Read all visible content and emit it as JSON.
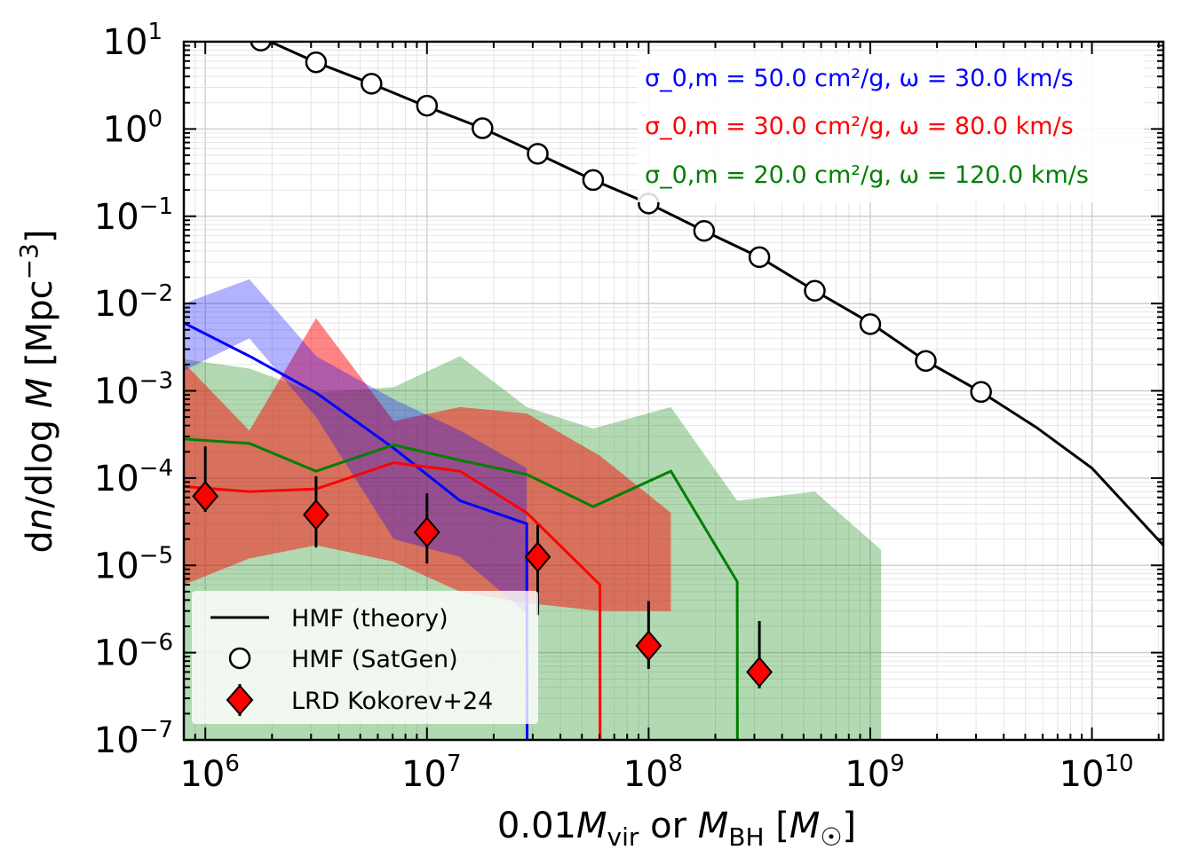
{
  "chart_data": {
    "type": "line",
    "xlabel": "0.01M_vir or M_BH [M_☉]",
    "ylabel": "dn/dlog M [Mpc⁻³]",
    "xscale": "log",
    "yscale": "log",
    "xlim": [
      800000,
      21000000000
    ],
    "ylim": [
      1e-07,
      10
    ],
    "grid": "major and minor, both axes",
    "legend_position": "lower-left",
    "x_tick_labels": [
      {
        "base": "10",
        "exp": "6"
      },
      {
        "base": "10",
        "exp": "7"
      },
      {
        "base": "10",
        "exp": "8"
      },
      {
        "base": "10",
        "exp": "9"
      },
      {
        "base": "10",
        "exp": "10"
      }
    ],
    "y_tick_labels": [
      {
        "base": "10",
        "exp": "1"
      },
      {
        "base": "10",
        "exp": "0"
      },
      {
        "base": "10",
        "exp": "−1"
      },
      {
        "base": "10",
        "exp": "−2"
      },
      {
        "base": "10",
        "exp": "−3"
      },
      {
        "base": "10",
        "exp": "−4"
      },
      {
        "base": "10",
        "exp": "−5"
      },
      {
        "base": "10",
        "exp": "−6"
      },
      {
        "base": "10",
        "exp": "−7"
      }
    ],
    "annotations": [
      {
        "text": "σ_0,m = 50.0 cm²/g, ω = 30.0 km/s",
        "color": "#0000ff"
      },
      {
        "text": "σ_0,m = 30.0 cm²/g, ω = 80.0 km/s",
        "color": "#ff0000"
      },
      {
        "text": "σ_0,m = 20.0 cm²/g, ω = 120.0 km/s",
        "color": "#008000"
      }
    ],
    "series": [
      {
        "name": "HMF (theory)",
        "kind": "line",
        "color": "#000000",
        "x": [
          1560000,
          3160000,
          5620000,
          10000000,
          17800000,
          31600000,
          56200000,
          100000000,
          178000000,
          316000000,
          562000000,
          1000000000,
          1780000000,
          3160000000,
          5620000000,
          10000000000,
          21000000000
        ],
        "y": [
          13,
          5.8,
          3.3,
          1.8,
          1.02,
          0.52,
          0.26,
          0.14,
          0.068,
          0.034,
          0.014,
          0.006,
          0.0022,
          0.00097,
          0.00038,
          0.00013,
          1.7e-05
        ]
      },
      {
        "name": "HMF (SatGen)",
        "kind": "markers",
        "marker": "open-circle",
        "color": "#000000",
        "x": [
          1780000,
          3160000,
          5620000,
          10000000,
          17800000,
          31600000,
          56200000,
          100000000,
          178000000,
          316000000,
          562000000,
          1000000000,
          1780000000,
          3160000000
        ],
        "y": [
          10.3,
          5.8,
          3.3,
          1.85,
          1.02,
          0.52,
          0.26,
          0.14,
          0.068,
          0.034,
          0.014,
          0.0058,
          0.0022,
          0.00097
        ]
      },
      {
        "name": "LRD Kokorev+24",
        "kind": "errorbar",
        "marker": "diamond",
        "color": "#ff0000",
        "x": [
          1000000,
          3160000,
          10000000,
          31600000,
          100000000,
          316000000
        ],
        "y": [
          6.2e-05,
          3.8e-05,
          2.4e-05,
          1.25e-05,
          1.2e-06,
          6e-07
        ],
        "y_lo": [
          4.1e-05,
          1.6e-05,
          1.05e-05,
          2.7e-06,
          6.5e-07,
          3.9e-07
        ],
        "y_hi": [
          0.00023,
          0.000105,
          6.7e-05,
          2.9e-05,
          3.9e-06,
          2.3e-06
        ]
      },
      {
        "label": "σ_0,m = 50.0 cm²/g, ω = 30.0 km/s",
        "kind": "line-band",
        "color": "#0000ff",
        "x": [
          800000,
          1580000,
          3160000,
          7080000,
          14100000,
          28200000,
          28300000
        ],
        "y": [
          0.006,
          0.0025,
          0.00095,
          0.00022,
          5.5e-05,
          3e-05,
          1e-07
        ],
        "band_x": [
          800000,
          1580000,
          3160000,
          7080000,
          14100000,
          28200000
        ],
        "band_lo": [
          0.0017,
          0.004,
          0.0005,
          2e-05,
          1.25e-05,
          2.8e-06
        ],
        "band_hi": [
          0.01,
          0.019,
          0.0025,
          0.0008,
          0.00035,
          0.00013
        ]
      },
      {
        "label": "σ_0,m = 30.0 cm²/g, ω = 80.0 km/s",
        "kind": "line-band",
        "color": "#ff0000",
        "x": [
          800000,
          1580000,
          3160000,
          7080000,
          14100000,
          28200000,
          60300000,
          60400000
        ],
        "y": [
          8e-05,
          7e-05,
          7.5e-05,
          0.00015,
          0.00012,
          4e-05,
          6e-06,
          1e-07
        ],
        "band_x": [
          800000,
          1580000,
          3160000,
          7080000,
          14100000,
          28200000,
          60300000,
          126000000
        ],
        "band_lo": [
          6e-06,
          1.2e-05,
          1.7e-05,
          1.1e-05,
          5e-06,
          3.7e-06,
          3e-06,
          3e-06
        ],
        "band_hi": [
          0.0021,
          0.00035,
          0.0068,
          0.00045,
          0.00065,
          0.00055,
          0.00018,
          4e-05
        ]
      },
      {
        "label": "σ_0,m = 20.0 cm²/g, ω = 120.0 km/s",
        "kind": "line-band",
        "color": "#008000",
        "x": [
          800000,
          1580000,
          3160000,
          7080000,
          14100000,
          28200000,
          56200000,
          126000000,
          251000000,
          251500000
        ],
        "y": [
          0.00028,
          0.00025,
          0.00012,
          0.00024,
          0.00016,
          0.00011,
          4.7e-05,
          0.00012,
          6.5e-06,
          1e-07
        ],
        "band_x": [
          800000,
          1580000,
          3160000,
          7080000,
          14100000,
          28200000,
          56200000,
          126000000,
          251000000,
          562000000,
          1120000000
        ],
        "band_lo": [
          1e-07,
          1e-07,
          1e-07,
          1e-07,
          1e-07,
          1e-07,
          1e-07,
          1e-07,
          1e-07,
          1e-07,
          1e-07
        ],
        "band_hi": [
          0.0023,
          0.0018,
          0.00095,
          0.0011,
          0.0025,
          0.00065,
          0.00037,
          0.00065,
          5.5e-05,
          7e-05,
          1.5e-05
        ]
      }
    ]
  }
}
